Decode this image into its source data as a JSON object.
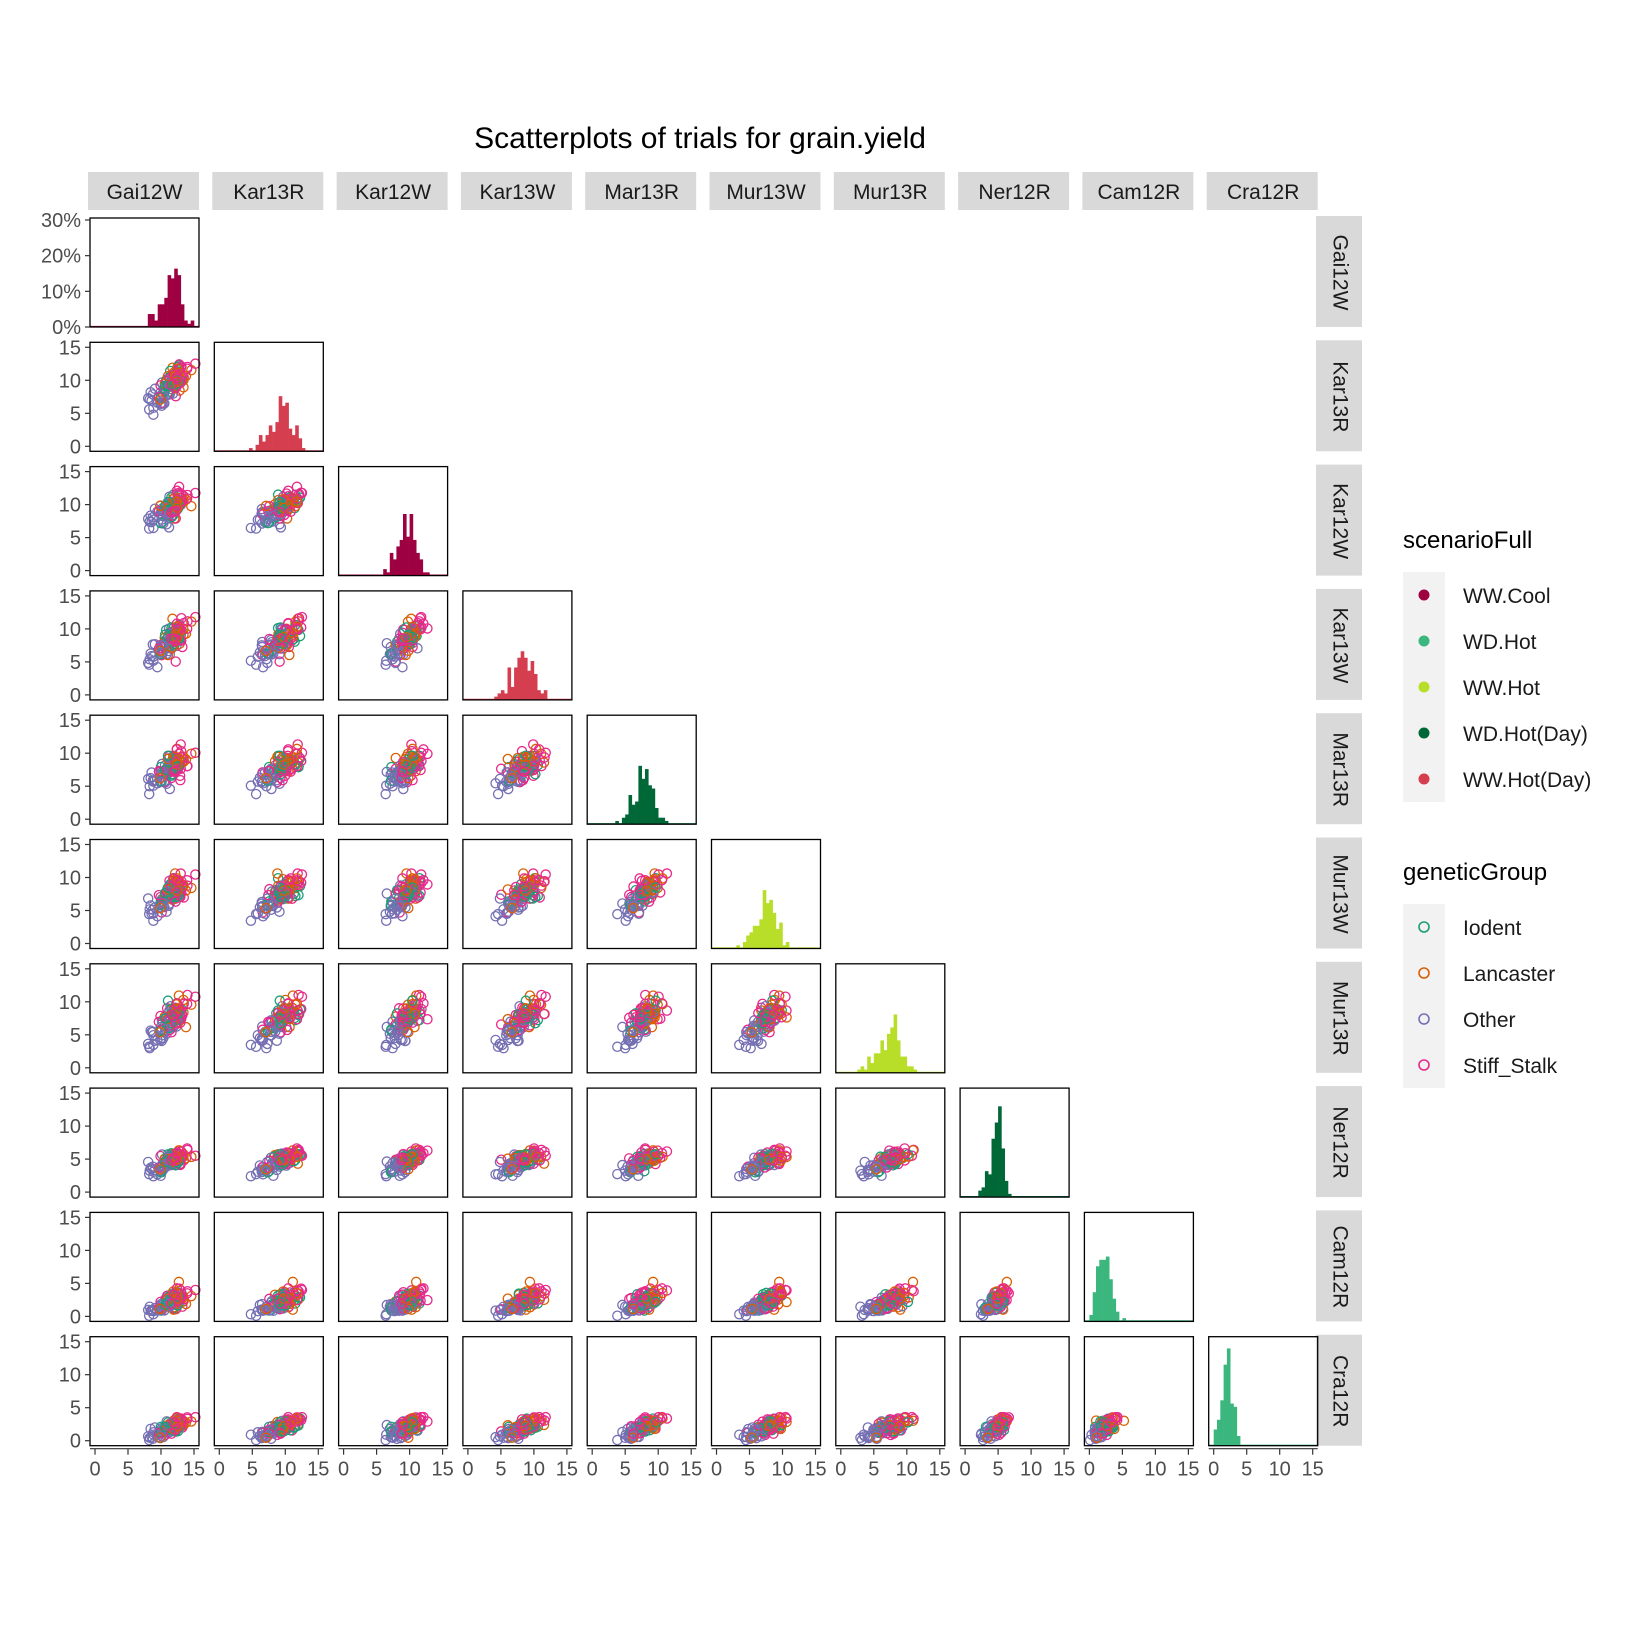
{
  "chart_data": {
    "type": "scatter",
    "chart_kind": "scatterplot-matrix",
    "title": "Scatterplots of trials for grain.yield",
    "trials": [
      "Gai12W",
      "Kar13R",
      "Kar12W",
      "Kar13W",
      "Mar13R",
      "Mur13W",
      "Mur13R",
      "Ner12R",
      "Cam12R",
      "Cra12R"
    ],
    "axis_range": [
      0,
      15
    ],
    "tick_labels": [
      "0",
      "5",
      "10",
      "15"
    ],
    "histogram_ticks": [
      "0%",
      "10%",
      "20%",
      "30%"
    ],
    "histogram_range": [
      0,
      0.3
    ],
    "grid": false,
    "legend_placement": "right",
    "legends": [
      {
        "title": "scenarioFull",
        "entries": [
          {
            "label": "WW.Cool",
            "color": "#9E0142"
          },
          {
            "label": "WD.Hot",
            "color": "#3BB77E"
          },
          {
            "label": "WW.Hot",
            "color": "#B8DE29"
          },
          {
            "label": "WD.Hot(Day)",
            "color": "#006837"
          },
          {
            "label": "WW.Hot(Day)",
            "color": "#D53E4F"
          }
        ]
      },
      {
        "title": "geneticGroup",
        "entries": [
          {
            "label": "Iodent",
            "color": "#1B9E77"
          },
          {
            "label": "Lancaster",
            "color": "#D95F02"
          },
          {
            "label": "Other",
            "color": "#7570B3"
          },
          {
            "label": "Stiff_Stalk",
            "color": "#E7298A"
          }
        ]
      }
    ],
    "trial_stats": [
      {
        "trial": "Gai12W",
        "scenario": "WW.Cool",
        "mean": 11.5,
        "sd": 1.4
      },
      {
        "trial": "Kar13R",
        "scenario": "WW.Hot(Day)",
        "mean": 9.5,
        "sd": 1.5
      },
      {
        "trial": "Kar12W",
        "scenario": "WW.Cool",
        "mean": 9.6,
        "sd": 1.4
      },
      {
        "trial": "Kar13W",
        "scenario": "WW.Hot(Day)",
        "mean": 8.4,
        "sd": 1.5
      },
      {
        "trial": "Mar13R",
        "scenario": "WD.Hot(Day)",
        "mean": 7.8,
        "sd": 1.3
      },
      {
        "trial": "Mur13W",
        "scenario": "WW.Hot",
        "mean": 7.6,
        "sd": 1.5
      },
      {
        "trial": "Mur13R",
        "scenario": "WW.Hot",
        "mean": 7.2,
        "sd": 1.6
      },
      {
        "trial": "Ner12R",
        "scenario": "WD.Hot(Day)",
        "mean": 4.9,
        "sd": 0.9
      },
      {
        "trial": "Cam12R",
        "scenario": "WD.Hot",
        "mean": 2.3,
        "sd": 0.9
      },
      {
        "trial": "Cra12R",
        "scenario": "WD.Hot",
        "mean": 2.0,
        "sd": 0.8
      }
    ]
  }
}
